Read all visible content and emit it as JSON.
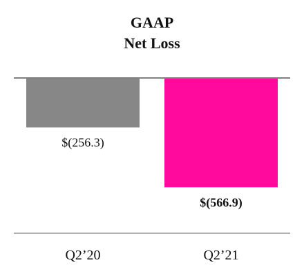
{
  "chart_data": {
    "type": "bar",
    "title": [
      "GAAP",
      "Net Loss"
    ],
    "categories": [
      "Q2’20",
      "Q2’21"
    ],
    "values": [
      -256.3,
      -566.9
    ],
    "value_labels": [
      "$(256.3)",
      "$(566.9)"
    ],
    "value_label_bold": [
      false,
      true
    ],
    "colors": [
      "#878787",
      "#ff0a9c"
    ],
    "ylim": [
      -600,
      0
    ],
    "grid": false,
    "legend": "none"
  }
}
